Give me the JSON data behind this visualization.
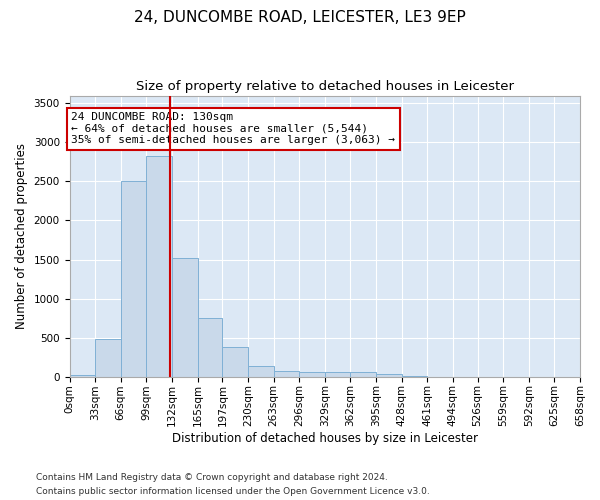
{
  "title_line1": "24, DUNCOMBE ROAD, LEICESTER, LE3 9EP",
  "title_line2": "Size of property relative to detached houses in Leicester",
  "xlabel": "Distribution of detached houses by size in Leicester",
  "ylabel": "Number of detached properties",
  "footnote1": "Contains HM Land Registry data © Crown copyright and database right 2024.",
  "footnote2": "Contains public sector information licensed under the Open Government Licence v3.0.",
  "bar_edges": [
    0,
    33,
    66,
    99,
    132,
    165,
    197,
    230,
    263,
    296,
    329,
    362,
    395,
    428,
    461,
    494,
    526,
    559,
    592,
    625,
    658
  ],
  "bar_heights": [
    25,
    480,
    2510,
    2820,
    1520,
    750,
    385,
    140,
    75,
    55,
    55,
    55,
    30,
    10,
    0,
    0,
    0,
    0,
    0,
    0
  ],
  "bar_color": "#c9d9ea",
  "bar_edgecolor": "#7fb0d5",
  "vline_x": 130,
  "vline_color": "#cc0000",
  "annotation_text": "24 DUNCOMBE ROAD: 130sqm\n← 64% of detached houses are smaller (5,544)\n35% of semi-detached houses are larger (3,063) →",
  "annotation_box_color": "#ffffff",
  "annotation_border_color": "#cc0000",
  "ylim": [
    0,
    3600
  ],
  "yticks": [
    0,
    500,
    1000,
    1500,
    2000,
    2500,
    3000,
    3500
  ],
  "xtick_labels": [
    "0sqm",
    "33sqm",
    "66sqm",
    "99sqm",
    "132sqm",
    "165sqm",
    "197sqm",
    "230sqm",
    "263sqm",
    "296sqm",
    "329sqm",
    "362sqm",
    "395sqm",
    "428sqm",
    "461sqm",
    "494sqm",
    "526sqm",
    "559sqm",
    "592sqm",
    "625sqm",
    "658sqm"
  ],
  "background_color": "#ffffff",
  "plot_bg_color": "#dce8f5",
  "grid_color": "#ffffff",
  "title1_fontsize": 11,
  "title2_fontsize": 9.5,
  "axis_label_fontsize": 8.5,
  "tick_fontsize": 7.5,
  "annotation_fontsize": 8,
  "footnote_fontsize": 6.5
}
